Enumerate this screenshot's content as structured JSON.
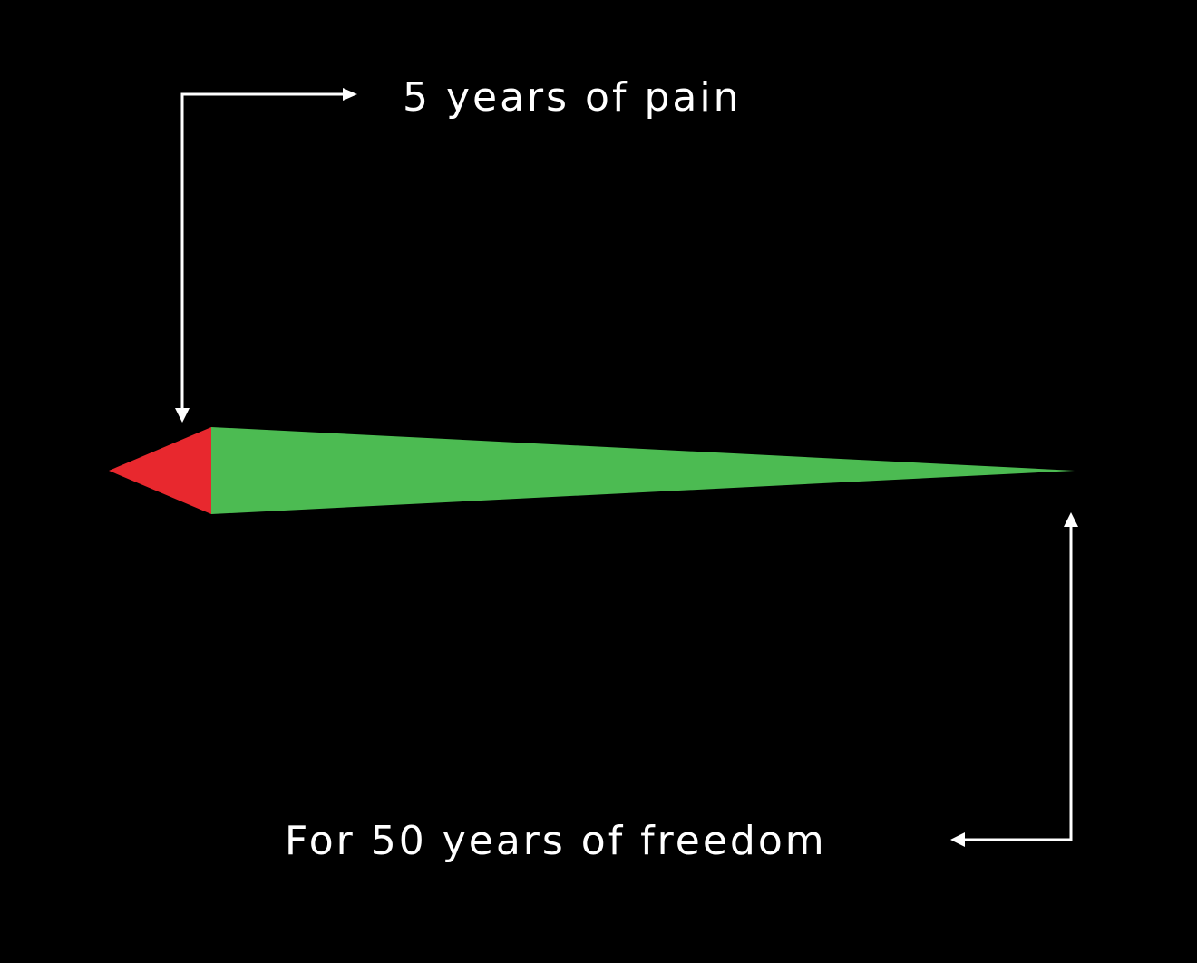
{
  "top_label": "5 years of pain",
  "bottom_label": "For 50 years of freedom",
  "colors": {
    "background": "#000000",
    "pain": "#e8282e",
    "freedom": "#4cbb52",
    "arrow": "#ffffff",
    "text": "#ffffff"
  }
}
